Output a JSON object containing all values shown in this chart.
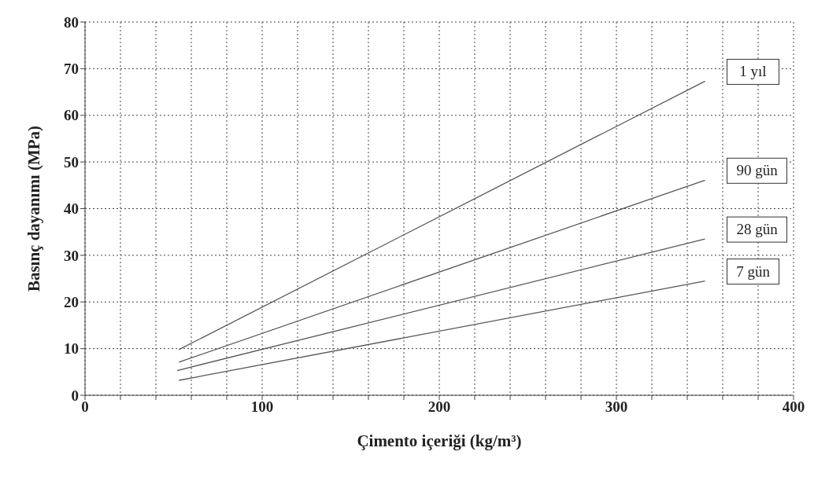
{
  "chart_data": {
    "type": "line",
    "xlabel": "Çimento içeriği (kg/m³)",
    "ylabel": "Basınç  dayanımı (MPa)",
    "xlim": [
      0,
      400
    ],
    "xticks": [
      0,
      {
        "value": 20,
        "label": null
      },
      {
        "value": 40,
        "label": null
      },
      {
        "value": 60,
        "label": null
      },
      {
        "value": 80,
        "label": null
      },
      100,
      {
        "value": 120,
        "label": null
      },
      {
        "value": 140,
        "label": null
      },
      {
        "value": 160,
        "label": null
      },
      {
        "value": 180,
        "label": null
      },
      200,
      {
        "value": 220,
        "label": null
      },
      {
        "value": 240,
        "label": null
      },
      {
        "value": 260,
        "label": null
      },
      {
        "value": 280,
        "label": null
      },
      300,
      {
        "value": 320,
        "label": null
      },
      {
        "value": 340,
        "label": null
      },
      {
        "value": 360,
        "label": null
      },
      {
        "value": 380,
        "label": null
      },
      400
    ],
    "ylim": [
      0,
      80
    ],
    "yticks": [
      0,
      10,
      20,
      30,
      40,
      50,
      60,
      70,
      80
    ],
    "grid": true,
    "legend": false,
    "marker": "none",
    "line_style": "solid",
    "series": [
      {
        "name": "1 yıl",
        "color": "#555555",
        "x": [
          53,
          350
        ],
        "values": [
          9.8,
          67.3
        ]
      },
      {
        "name": "90 gün",
        "color": "#555555",
        "x": [
          53,
          350
        ],
        "values": [
          7.1,
          46.1
        ]
      },
      {
        "name": "28 gün",
        "color": "#555555",
        "x": [
          52,
          350
        ],
        "values": [
          5.3,
          33.5
        ]
      },
      {
        "name": "7 gün",
        "color": "#555555",
        "x": [
          53,
          350
        ],
        "values": [
          3.2,
          24.5
        ]
      }
    ]
  }
}
